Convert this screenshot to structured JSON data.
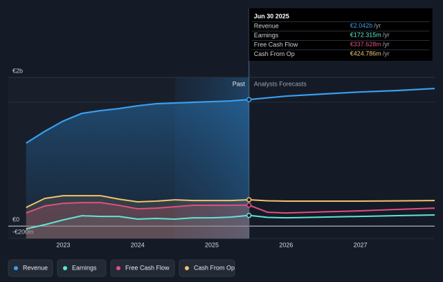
{
  "chart_data": {
    "type": "line",
    "x": [
      2022.5,
      2022.75,
      2023.0,
      2023.25,
      2023.5,
      2023.75,
      2024.0,
      2024.25,
      2024.5,
      2024.75,
      2025.0,
      2025.25,
      2025.5,
      2025.75,
      2026.0,
      2026.5,
      2027.0,
      2027.5,
      2028.0
    ],
    "series": [
      {
        "name": "Revenue",
        "color": "#3a9ff0",
        "values": [
          1339,
          1529,
          1696,
          1819,
          1864,
          1897,
          1942,
          1975,
          1987,
          1998,
          2009,
          2020,
          2042,
          2070,
          2098,
          2132,
          2165,
          2188,
          2221
        ]
      },
      {
        "name": "Earnings",
        "color": "#62e4d6",
        "values": [
          -45,
          22,
          100,
          167,
          156,
          156,
          112,
          123,
          112,
          134,
          134,
          145,
          172,
          140,
          134,
          145,
          156,
          168,
          179
        ]
      },
      {
        "name": "Free Cash Flow",
        "color": "#e0507f",
        "values": [
          212,
          324,
          368,
          379,
          379,
          335,
          279,
          290,
          312,
          335,
          335,
          335,
          338,
          223,
          212,
          229,
          246,
          268,
          290
        ]
      },
      {
        "name": "Cash From Op",
        "color": "#f1c46c",
        "values": [
          301,
          446,
          491,
          491,
          491,
          435,
          391,
          402,
          424,
          413,
          413,
          413,
          425,
          408,
          402,
          402,
          402,
          407,
          413
        ]
      }
    ],
    "xlim": [
      2022.26,
      2028.0
    ],
    "xticks": [
      2023,
      2024,
      2025,
      2026,
      2027
    ],
    "ylim": [
      -200,
      2400
    ],
    "yticks": [
      {
        "value": -200,
        "label": "-€200m"
      },
      {
        "value": 0,
        "label": "€0"
      },
      {
        "value": 2000,
        "label": "€2b"
      }
    ],
    "highlight_x": 2025.5,
    "past_label": "Past",
    "forecast_label": "Analysts Forecasts",
    "tooltip": {
      "date": "Jun 30 2025",
      "unit": "/yr",
      "rows": [
        {
          "name": "Revenue",
          "value": "€2.042b"
        },
        {
          "name": "Earnings",
          "value": "€172.315m"
        },
        {
          "name": "Free Cash Flow",
          "value": "€337.628m"
        },
        {
          "name": "Cash From Op",
          "value": "€424.786m"
        }
      ]
    }
  }
}
